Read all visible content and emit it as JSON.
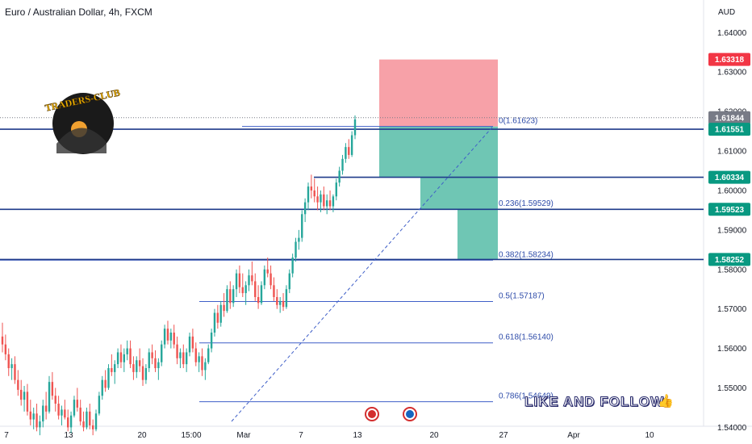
{
  "header": {
    "title": "Euro / Australian Dollar, 4h, FXCM"
  },
  "axis": {
    "currency": "AUD"
  },
  "watermark": {
    "text": "LIKE AND FOLLOW",
    "icon": "thumbs-up-icon"
  },
  "logo": {
    "text": "TRADERS-CLUB"
  },
  "colors": {
    "up": "#26a69a",
    "down": "#ef5350",
    "level_line": "#1e3a8a",
    "fib_line": "#3f5fc8",
    "stop_zone": "#f7a1a8",
    "target_zone": "#6fc6b4",
    "badge_red": "#f23645",
    "badge_green": "#089981",
    "badge_grey": "#787b86"
  },
  "chart_data": {
    "type": "candlestick",
    "instrument": "Euro / Australian Dollar",
    "timeframe": "4h",
    "source": "FXCM",
    "ylim": [
      1.5366,
      1.6462
    ],
    "yticks": [
      1.54,
      1.55,
      1.56,
      1.57,
      1.58,
      1.59,
      1.6,
      1.61,
      1.62,
      1.63,
      1.64
    ],
    "ytick_labels": [
      "1.54000",
      "1.55000",
      "1.56000",
      "1.57000",
      "1.58000",
      "1.59000",
      "1.60000",
      "1.61000",
      "1.62000",
      "1.63000",
      "1.64000"
    ],
    "xticks": [
      "7",
      "13",
      "20",
      "15:00",
      "Mar",
      "7",
      "13",
      "20",
      "27",
      "Apr",
      "10"
    ],
    "price_badges": [
      {
        "label": "1.63318",
        "value": 1.63318,
        "kind": "stop"
      },
      {
        "label": "1.61844",
        "value": 1.61844,
        "kind": "last"
      },
      {
        "label": "1.61551",
        "value": 1.61551,
        "kind": "level"
      },
      {
        "label": "1.60334",
        "value": 1.60334,
        "kind": "level"
      },
      {
        "label": "1.59523",
        "value": 1.59523,
        "kind": "level"
      },
      {
        "label": "1.58252",
        "value": 1.58252,
        "kind": "level"
      }
    ],
    "horizontal_levels": [
      1.61551,
      1.60334,
      1.59523,
      1.58252
    ],
    "fibonacci": [
      {
        "label": "0(1.61623)",
        "value": 1.61623
      },
      {
        "label": "0.236(1.59529)",
        "value": 1.59529
      },
      {
        "label": "0.382(1.58234)",
        "value": 1.58234
      },
      {
        "label": "0.5(1.57187)",
        "value": 1.57187
      },
      {
        "label": "0.618(1.56140)",
        "value": 1.5614
      },
      {
        "label": "0.786(1.54649)",
        "value": 1.54649
      }
    ],
    "position": {
      "side": "short",
      "entry": 1.6162,
      "stop": 1.63318,
      "target_steps": [
        1.60334,
        1.59523,
        1.58252
      ]
    },
    "candles": [
      [
        1.563,
        1.5665,
        1.559,
        1.561
      ],
      [
        1.561,
        1.5635,
        1.557,
        1.5585
      ],
      [
        1.5585,
        1.56,
        1.553,
        1.555
      ],
      [
        1.555,
        1.5575,
        1.552,
        1.556
      ],
      [
        1.556,
        1.558,
        1.551,
        1.552
      ],
      [
        1.552,
        1.5545,
        1.548,
        1.5495
      ],
      [
        1.5495,
        1.552,
        1.5455,
        1.547
      ],
      [
        1.547,
        1.5505,
        1.544,
        1.549
      ],
      [
        1.549,
        1.551,
        1.543,
        1.544
      ],
      [
        1.544,
        1.547,
        1.5405,
        1.542
      ],
      [
        1.542,
        1.545,
        1.5395,
        1.5435
      ],
      [
        1.5435,
        1.546,
        1.539,
        1.54
      ],
      [
        1.54,
        1.543,
        1.538,
        1.5415
      ],
      [
        1.5415,
        1.547,
        1.54,
        1.5455
      ],
      [
        1.5455,
        1.549,
        1.542,
        1.544
      ],
      [
        1.544,
        1.553,
        1.5435,
        1.5515
      ],
      [
        1.5515,
        1.554,
        1.547,
        1.548
      ],
      [
        1.548,
        1.55,
        1.544,
        1.546
      ],
      [
        1.546,
        1.548,
        1.542,
        1.543
      ],
      [
        1.543,
        1.5455,
        1.5405,
        1.5445
      ],
      [
        1.5445,
        1.547,
        1.542,
        1.5425
      ],
      [
        1.5425,
        1.5445,
        1.539,
        1.54
      ],
      [
        1.54,
        1.544,
        1.5385,
        1.543
      ],
      [
        1.543,
        1.548,
        1.5425,
        1.547
      ],
      [
        1.547,
        1.55,
        1.544,
        1.545
      ],
      [
        1.545,
        1.547,
        1.5405,
        1.5415
      ],
      [
        1.5415,
        1.544,
        1.539,
        1.54
      ],
      [
        1.54,
        1.545,
        1.5395,
        1.544
      ],
      [
        1.544,
        1.546,
        1.5395,
        1.5405
      ],
      [
        1.5405,
        1.542,
        1.538,
        1.5395
      ],
      [
        1.5395,
        1.5445,
        1.539,
        1.5435
      ],
      [
        1.5435,
        1.549,
        1.543,
        1.548
      ],
      [
        1.548,
        1.553,
        1.547,
        1.552
      ],
      [
        1.552,
        1.5545,
        1.549,
        1.55
      ],
      [
        1.55,
        1.556,
        1.5495,
        1.555
      ],
      [
        1.555,
        1.5585,
        1.553,
        1.554
      ],
      [
        1.554,
        1.557,
        1.551,
        1.556
      ],
      [
        1.556,
        1.56,
        1.555,
        1.559
      ],
      [
        1.559,
        1.561,
        1.555,
        1.5565
      ],
      [
        1.5565,
        1.56,
        1.554,
        1.5585
      ],
      [
        1.5585,
        1.562,
        1.557,
        1.56
      ],
      [
        1.56,
        1.562,
        1.555,
        1.556
      ],
      [
        1.556,
        1.558,
        1.552,
        1.554
      ],
      [
        1.554,
        1.558,
        1.5525,
        1.557
      ],
      [
        1.557,
        1.56,
        1.554,
        1.5555
      ],
      [
        1.5555,
        1.5575,
        1.5505,
        1.552
      ],
      [
        1.552,
        1.556,
        1.551,
        1.555
      ],
      [
        1.555,
        1.56,
        1.554,
        1.559
      ],
      [
        1.559,
        1.561,
        1.556,
        1.5575
      ],
      [
        1.5575,
        1.5595,
        1.554,
        1.555
      ],
      [
        1.555,
        1.5575,
        1.552,
        1.5565
      ],
      [
        1.5565,
        1.562,
        1.5555,
        1.561
      ],
      [
        1.561,
        1.566,
        1.56,
        1.565
      ],
      [
        1.565,
        1.567,
        1.561,
        1.562
      ],
      [
        1.562,
        1.565,
        1.56,
        1.564
      ],
      [
        1.564,
        1.566,
        1.56,
        1.561
      ],
      [
        1.561,
        1.563,
        1.556,
        1.5575
      ],
      [
        1.5575,
        1.56,
        1.555,
        1.559
      ],
      [
        1.559,
        1.561,
        1.555,
        1.556
      ],
      [
        1.556,
        1.56,
        1.554,
        1.559
      ],
      [
        1.559,
        1.564,
        1.558,
        1.563
      ],
      [
        1.563,
        1.565,
        1.559,
        1.56
      ],
      [
        1.56,
        1.5615,
        1.5555,
        1.5565
      ],
      [
        1.5565,
        1.559,
        1.554,
        1.558
      ],
      [
        1.558,
        1.56,
        1.553,
        1.5545
      ],
      [
        1.5545,
        1.5575,
        1.552,
        1.5565
      ],
      [
        1.5565,
        1.561,
        1.556,
        1.56
      ],
      [
        1.56,
        1.565,
        1.559,
        1.564
      ],
      [
        1.564,
        1.57,
        1.563,
        1.569
      ],
      [
        1.569,
        1.571,
        1.565,
        1.5665
      ],
      [
        1.5665,
        1.572,
        1.5655,
        1.571
      ],
      [
        1.571,
        1.574,
        1.568,
        1.5695
      ],
      [
        1.5695,
        1.576,
        1.569,
        1.575
      ],
      [
        1.575,
        1.577,
        1.57,
        1.5715
      ],
      [
        1.5715,
        1.576,
        1.5705,
        1.575
      ],
      [
        1.575,
        1.58,
        1.573,
        1.579
      ],
      [
        1.579,
        1.581,
        1.574,
        1.5755
      ],
      [
        1.5755,
        1.579,
        1.573,
        1.574
      ],
      [
        1.574,
        1.577,
        1.571,
        1.576
      ],
      [
        1.576,
        1.58,
        1.5745,
        1.5785
      ],
      [
        1.5785,
        1.582,
        1.576,
        1.577
      ],
      [
        1.577,
        1.579,
        1.572,
        1.573
      ],
      [
        1.573,
        1.576,
        1.57,
        1.5715
      ],
      [
        1.5715,
        1.577,
        1.571,
        1.576
      ],
      [
        1.576,
        1.581,
        1.575,
        1.58
      ],
      [
        1.58,
        1.583,
        1.578,
        1.579
      ],
      [
        1.579,
        1.581,
        1.575,
        1.576
      ],
      [
        1.576,
        1.578,
        1.572,
        1.573
      ],
      [
        1.573,
        1.575,
        1.57,
        1.571
      ],
      [
        1.571,
        1.573,
        1.569,
        1.572
      ],
      [
        1.572,
        1.574,
        1.5695,
        1.5705
      ],
      [
        1.5705,
        1.576,
        1.57,
        1.575
      ],
      [
        1.575,
        1.58,
        1.574,
        1.579
      ],
      [
        1.579,
        1.584,
        1.578,
        1.583
      ],
      [
        1.583,
        1.588,
        1.582,
        1.587
      ],
      [
        1.587,
        1.59,
        1.585,
        1.588
      ],
      [
        1.588,
        1.595,
        1.587,
        1.594
      ],
      [
        1.594,
        1.598,
        1.592,
        1.597
      ],
      [
        1.597,
        1.602,
        1.595,
        1.601
      ],
      [
        1.601,
        1.604,
        1.598,
        1.6
      ],
      [
        1.6,
        1.603,
        1.597,
        1.5985
      ],
      [
        1.5985,
        1.601,
        1.595,
        1.597
      ],
      [
        1.597,
        1.6,
        1.5945,
        1.599
      ],
      [
        1.599,
        1.601,
        1.595,
        1.596
      ],
      [
        1.596,
        1.599,
        1.594,
        1.5975
      ],
      [
        1.5975,
        1.6,
        1.595,
        1.596
      ],
      [
        1.596,
        1.599,
        1.5945,
        1.5985
      ],
      [
        1.5985,
        1.603,
        1.5975,
        1.602
      ],
      [
        1.602,
        1.606,
        1.601,
        1.605
      ],
      [
        1.605,
        1.609,
        1.604,
        1.608
      ],
      [
        1.608,
        1.612,
        1.607,
        1.611
      ],
      [
        1.611,
        1.613,
        1.608,
        1.609
      ],
      [
        1.609,
        1.615,
        1.6085,
        1.614
      ],
      [
        1.614,
        1.619,
        1.613,
        1.618
      ]
    ]
  }
}
